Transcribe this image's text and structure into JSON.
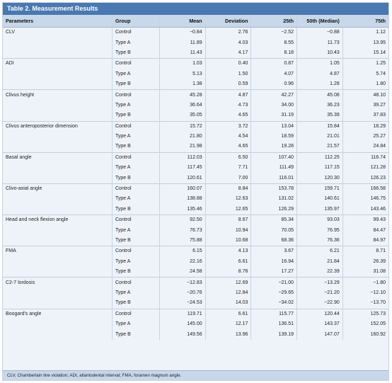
{
  "title": "Table 2. Measurement Results",
  "columns": [
    "Parameters",
    "Group",
    "Mean",
    "Deviation",
    "25th",
    "50th (Median)",
    "75th"
  ],
  "groups": [
    {
      "parameter": "CLV",
      "rows": [
        {
          "group": "Control",
          "mean": "−0.84",
          "deviation": "2.76",
          "p25": "−2.52",
          "p50": "−0.88",
          "p75": "1.12"
        },
        {
          "group": "Type A",
          "mean": "11.89",
          "deviation": "4.03",
          "p25": "8.55",
          "p50": "11.73",
          "p75": "13.95"
        },
        {
          "group": "Type B",
          "mean": "11.43",
          "deviation": "4.17",
          "p25": "8.18",
          "p50": "10.43",
          "p75": "15.14"
        }
      ]
    },
    {
      "parameter": "ADI",
      "rows": [
        {
          "group": "Control",
          "mean": "1.03",
          "deviation": "0.40",
          "p25": "0.87",
          "p50": "1.05",
          "p75": "1.25"
        },
        {
          "group": "Type A",
          "mean": "5.13",
          "deviation": "1.50",
          "p25": "4.07",
          "p50": "4.87",
          "p75": "5.74"
        },
        {
          "group": "Type B",
          "mean": "1.38",
          "deviation": "0.59",
          "p25": "0.96",
          "p50": "1.28",
          "p75": "1.80"
        }
      ]
    },
    {
      "parameter": "Clivus height",
      "rows": [
        {
          "group": "Control",
          "mean": "45.28",
          "deviation": "4.87",
          "p25": "42.27",
          "p50": "45.08",
          "p75": "48.10"
        },
        {
          "group": "Type A",
          "mean": "36.64",
          "deviation": "4.73",
          "p25": "34.00",
          "p50": "36.23",
          "p75": "39.27"
        },
        {
          "group": "Type B",
          "mean": "35.05",
          "deviation": "4.65",
          "p25": "31.19",
          "p50": "35.39",
          "p75": "37.83"
        }
      ]
    },
    {
      "parameter": "Clivus anteroposterior dimension",
      "rows": [
        {
          "group": "Control",
          "mean": "15.72",
          "deviation": "3.72",
          "p25": "13.04",
          "p50": "15.84",
          "p75": "18.29"
        },
        {
          "group": "Type A",
          "mean": "21.80",
          "deviation": "4.54",
          "p25": "18.59",
          "p50": "21.01",
          "p75": "25.27"
        },
        {
          "group": "Type B",
          "mean": "21.98",
          "deviation": "4.65",
          "p25": "19.28",
          "p50": "21.57",
          "p75": "24.84"
        }
      ]
    },
    {
      "parameter": "Basal angle",
      "rows": [
        {
          "group": "Control",
          "mean": "112.03",
          "deviation": "6.50",
          "p25": "107.40",
          "p50": "112.25",
          "p75": "116.74"
        },
        {
          "group": "Type A",
          "mean": "117.45",
          "deviation": "7.71",
          "p25": "111.49",
          "p50": "117.15",
          "p75": "121.28"
        },
        {
          "group": "Type B",
          "mean": "120.61",
          "deviation": "7.00",
          "p25": "116.01",
          "p50": "120.30",
          "p75": "126.23"
        }
      ]
    },
    {
      "parameter": "Clivo-axial angle",
      "rows": [
        {
          "group": "Control",
          "mean": "160.07",
          "deviation": "8.84",
          "p25": "153.78",
          "p50": "159.71",
          "p75": "166.58"
        },
        {
          "group": "Type A",
          "mean": "138.88",
          "deviation": "12.63",
          "p25": "131.02",
          "p50": "140.61",
          "p75": "146.75"
        },
        {
          "group": "Type B",
          "mean": "135.46",
          "deviation": "12.65",
          "p25": "126.29",
          "p50": "135.97",
          "p75": "143.46"
        }
      ]
    },
    {
      "parameter": "Head and neck flexion angle",
      "rows": [
        {
          "group": "Control",
          "mean": "92.50",
          "deviation": "8.67",
          "p25": "85.34",
          "p50": "93.03",
          "p75": "99.43"
        },
        {
          "group": "Type A",
          "mean": "76.73",
          "deviation": "10.94",
          "p25": "70.05",
          "p50": "76.95",
          "p75": "84.47"
        },
        {
          "group": "Type B",
          "mean": "75.88",
          "deviation": "10.68",
          "p25": "68.36",
          "p50": "76.36",
          "p75": "84.97"
        }
      ]
    },
    {
      "parameter": "FMA",
      "rows": [
        {
          "group": "Control",
          "mean": "6.15",
          "deviation": "4.13",
          "p25": "3.67",
          "p50": "6.21",
          "p75": "8.71"
        },
        {
          "group": "Type A",
          "mean": "22.16",
          "deviation": "6.61",
          "p25": "16.94",
          "p50": "21.84",
          "p75": "26.39"
        },
        {
          "group": "Type B",
          "mean": "24.58",
          "deviation": "8.76",
          "p25": "17.27",
          "p50": "22.39",
          "p75": "31.08"
        }
      ]
    },
    {
      "parameter": "C2-7 lordosis",
      "rows": [
        {
          "group": "Control",
          "mean": "−12.83",
          "deviation": "12.69",
          "p25": "−21.00",
          "p50": "−13.29",
          "p75": "−1.80"
        },
        {
          "group": "Type A",
          "mean": "−20.76",
          "deviation": "12.84",
          "p25": "−29.65",
          "p50": "−21.20",
          "p75": "−12.10"
        },
        {
          "group": "Type B",
          "mean": "−24.53",
          "deviation": "14.03",
          "p25": "−34.02",
          "p50": "−22.90",
          "p75": "−13.70"
        }
      ]
    },
    {
      "parameter": "Boogard's angle",
      "rows": [
        {
          "group": "Control",
          "mean": "119.71",
          "deviation": "6.61",
          "p25": "115.77",
          "p50": "120.44",
          "p75": "125.73"
        },
        {
          "group": "Type A",
          "mean": "145.00",
          "deviation": "12.17",
          "p25": "136.51",
          "p50": "143.37",
          "p75": "152.05"
        },
        {
          "group": "Type B",
          "mean": "149.56",
          "deviation": "13.96",
          "p25": "139.19",
          "p50": "147.07",
          "p75": "160.92"
        }
      ]
    }
  ],
  "footnote": "CLV, Chamberlain line violation; ADI, atlantodental interval; FMA, foramen magnum angle."
}
